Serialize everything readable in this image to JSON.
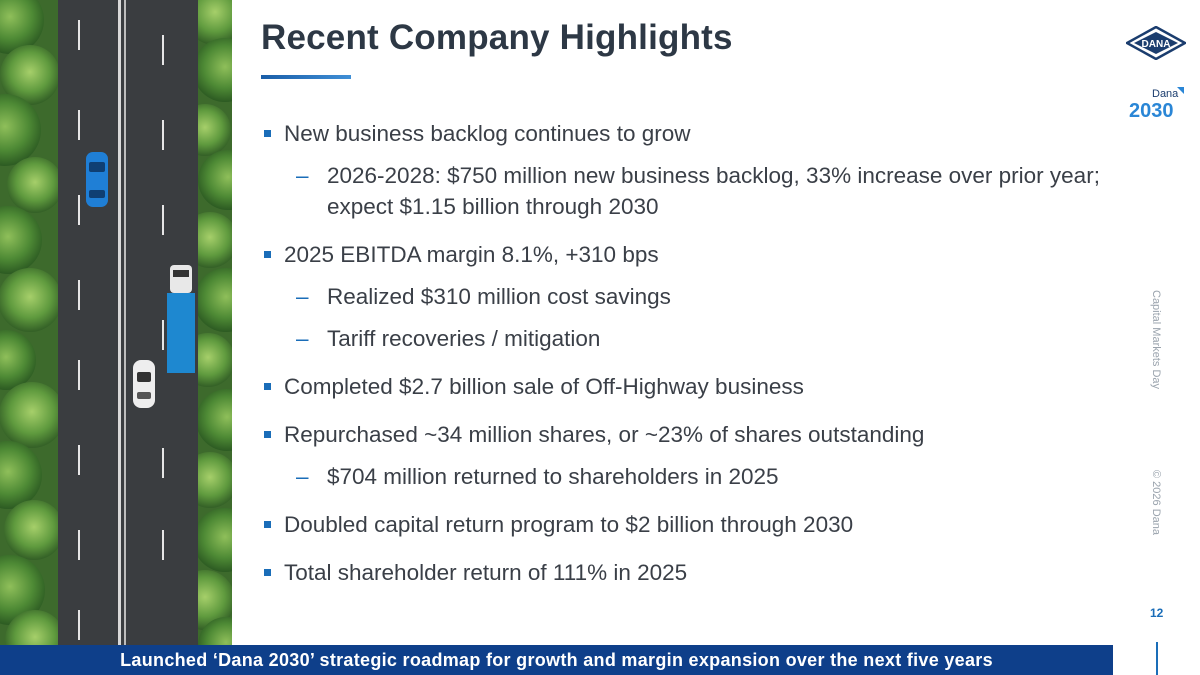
{
  "slide": {
    "title": "Recent Company Highlights",
    "page_number": "12",
    "side_label_top": "Capital Markets Day",
    "side_label_bottom": "© 2026 Dana",
    "banner": "Launched ‘Dana 2030’ strategic roadmap for growth and margin expansion over the next five years"
  },
  "logo": {
    "brand": "DANA",
    "program_small": "Dana",
    "program_year": "2030"
  },
  "bullets": [
    {
      "text": "New business backlog continues to grow",
      "subs": [
        "2026-2028: $750 million new business backlog, 33% increase over prior year; expect $1.15 billion through 2030"
      ]
    },
    {
      "text": "2025 EBITDA margin 8.1%, +310 bps",
      "subs": [
        "Realized $310 million cost savings",
        "Tariff recoveries / mitigation"
      ]
    },
    {
      "text": "Completed $2.7 billion sale of Off-Highway business",
      "subs": []
    },
    {
      "text": "Repurchased ~34 million shares, or ~23% of shares outstanding",
      "subs": [
        "$704 million returned to shareholders in 2025"
      ]
    },
    {
      "text": "Doubled capital return program to $2 billion through 2030",
      "subs": []
    },
    {
      "text": "Total shareholder return of 111% in 2025",
      "subs": []
    }
  ],
  "colors": {
    "accent": "#1a6db8",
    "banner": "#0e3f8a",
    "title": "#2d3845"
  }
}
